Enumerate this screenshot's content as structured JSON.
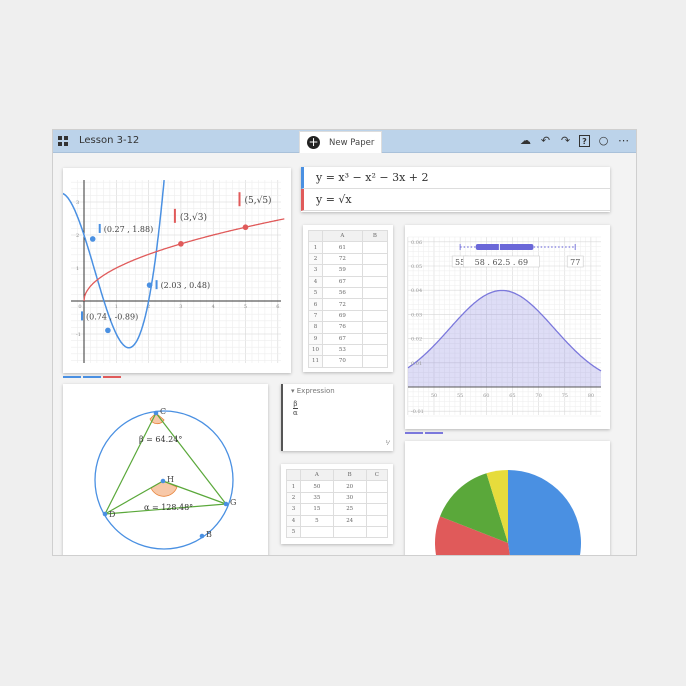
{
  "header": {
    "title": "Lesson 3-12",
    "new_tab_label": "New Paper",
    "icons": [
      "apps-grid-icon",
      "cloud-sync-icon",
      "undo-icon",
      "redo-icon",
      "help-icon",
      "circle-icon",
      "more-icon"
    ],
    "help_label": "?"
  },
  "colors": {
    "blue": "#4a90e2",
    "red": "#e05a5a",
    "purple": "#7b78dc",
    "green": "#5aa83a",
    "yellow": "#e6dc3c",
    "header": "#bcd3ea"
  },
  "graph": {
    "functions": [
      "y = x³ − x² − 3x + 2",
      "y = √x"
    ],
    "x_ticks": [
      "0",
      "1",
      "2",
      "3",
      "4",
      "5",
      "6"
    ],
    "y_ticks": [
      "-1",
      "1",
      "2",
      "3"
    ],
    "labels": [
      {
        "text": "(0.27 , 1.88)",
        "x": 0.27,
        "y": 1.88
      },
      {
        "text": "(2.03 , 0.48)",
        "x": 2.03,
        "y": 0.48
      },
      {
        "text": "(0.74 , -0.89)",
        "x": 0.74,
        "y": -0.89
      }
    ],
    "sqrt_points": [
      {
        "text": "(3,√3)",
        "x": 3
      },
      {
        "text": "(5,√5)",
        "x": 5
      }
    ]
  },
  "table1": {
    "headers": [
      "",
      "A",
      "B"
    ],
    "rows": [
      [
        "1",
        "61",
        ""
      ],
      [
        "2",
        "72",
        ""
      ],
      [
        "3",
        "59",
        ""
      ],
      [
        "4",
        "67",
        ""
      ],
      [
        "5",
        "56",
        ""
      ],
      [
        "6",
        "72",
        ""
      ],
      [
        "7",
        "69",
        ""
      ],
      [
        "8",
        "76",
        ""
      ],
      [
        "9",
        "67",
        ""
      ],
      [
        "10",
        "53",
        ""
      ],
      [
        "11",
        "70",
        ""
      ]
    ]
  },
  "distribution": {
    "x_ticks": [
      "50",
      "55",
      "60",
      "65",
      "70",
      "75",
      "80"
    ],
    "y_ticks": [
      "0.06",
      "0.05",
      "0.04",
      "0.03",
      "0.02",
      "0.01",
      "-0.01"
    ],
    "mean": 63,
    "sd": 10,
    "boxplot": {
      "min": 55,
      "q1": 58,
      "median": 62.5,
      "q3": 69,
      "max": 77
    },
    "labels": [
      "55",
      "58 . 62.5 . 69",
      "77"
    ]
  },
  "expression_card": {
    "header": "Expression",
    "numerator": "β",
    "denominator": "α"
  },
  "table2": {
    "headers": [
      "",
      "A",
      "B",
      "C"
    ],
    "rows": [
      [
        "1",
        "50",
        "20",
        ""
      ],
      [
        "2",
        "35",
        "30",
        ""
      ],
      [
        "3",
        "15",
        "25",
        ""
      ],
      [
        "4",
        "5",
        "24",
        ""
      ],
      [
        "5",
        "",
        "",
        ""
      ]
    ]
  },
  "geometry": {
    "points": [
      "C",
      "H",
      "D",
      "G",
      "B"
    ],
    "beta_label": "β = 64.24°",
    "alpha_label": "α = 128.48°"
  },
  "chart_data": {
    "type": "pie",
    "values": [
      50,
      35,
      15,
      5
    ],
    "colors": [
      "#4a90e2",
      "#e05a5a",
      "#5aa83a",
      "#e6dc3c"
    ]
  }
}
